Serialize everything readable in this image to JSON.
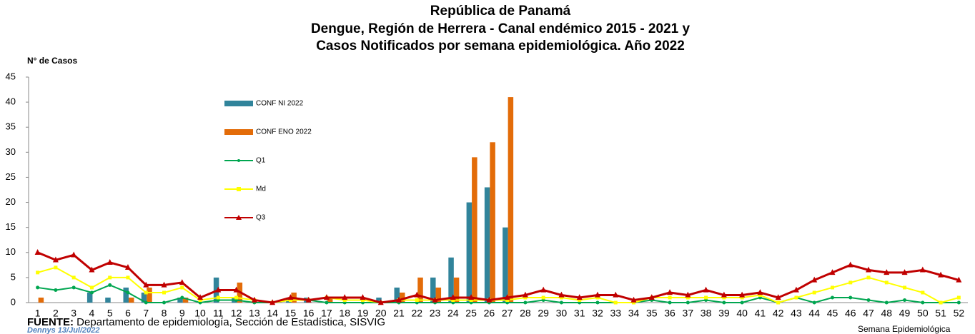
{
  "chart_data": {
    "type": "bar_line",
    "title": [
      "República de Panamá",
      "Dengue, Región de Herrera - Canal endémico 2015 - 2021 y",
      "Casos Notificados por semana epidemiológica. Año 2022"
    ],
    "y_label": "N° de Casos",
    "x_label": "Semana Epidemiológica",
    "source_label": "FUENTE:",
    "source": "Departamento de epidemiología, Sección de Estadística, SISVIG",
    "author": "Dennys 13/Jul/2022",
    "categories": [
      "1",
      "2",
      "3",
      "4",
      "5",
      "6",
      "7",
      "8",
      "9",
      "10",
      "11",
      "12",
      "13",
      "14",
      "15",
      "16",
      "17",
      "18",
      "19",
      "20",
      "21",
      "22",
      "23",
      "24",
      "25",
      "26",
      "27",
      "28",
      "29",
      "30",
      "31",
      "32",
      "33",
      "34",
      "35",
      "36",
      "37",
      "38",
      "39",
      "40",
      "41",
      "42",
      "43",
      "44",
      "45",
      "46",
      "47",
      "48",
      "49",
      "50",
      "51",
      "52"
    ],
    "ylim": [
      0,
      45
    ],
    "yticks": [
      0,
      5,
      10,
      15,
      20,
      25,
      30,
      35,
      40,
      45
    ],
    "series": [
      {
        "name": "CONF NI 2022",
        "kind": "bar",
        "color": "#31849b",
        "values": [
          0,
          0,
          0,
          2,
          1,
          3,
          2,
          0,
          1,
          0,
          5,
          1,
          0,
          0,
          1,
          1,
          0,
          0,
          0,
          1,
          3,
          0,
          5,
          9,
          20,
          23,
          15,
          0,
          0,
          0,
          0,
          0,
          0,
          0,
          0,
          0,
          0,
          0,
          0,
          0,
          0,
          0,
          0,
          0,
          0,
          0,
          0,
          0,
          0,
          0,
          0,
          0
        ]
      },
      {
        "name": "CONF ENO 2022",
        "kind": "bar",
        "color": "#e36c09",
        "values": [
          1,
          0,
          0,
          0,
          0,
          1,
          3,
          0,
          1,
          0,
          0,
          4,
          0,
          0,
          2,
          0,
          1,
          0,
          0,
          0,
          2,
          5,
          3,
          5,
          29,
          32,
          41,
          0,
          0,
          0,
          0,
          0,
          0,
          0,
          0,
          0,
          0,
          0,
          0,
          0,
          0,
          0,
          0,
          0,
          0,
          0,
          0,
          0,
          0,
          0,
          0,
          0
        ]
      },
      {
        "name": "Q1",
        "kind": "line",
        "marker": "circle",
        "color": "#00a650",
        "values": [
          3,
          2.5,
          3,
          2,
          3.5,
          2,
          0,
          0,
          1,
          0,
          0.5,
          0.5,
          0,
          0,
          0.5,
          0.5,
          0,
          0,
          0,
          0,
          0,
          0,
          0,
          0,
          0,
          0,
          0,
          0,
          0.5,
          0,
          0,
          0,
          0,
          0,
          0.5,
          0,
          0,
          0.5,
          0,
          0,
          1,
          0,
          1,
          0,
          1,
          1,
          0.5,
          0,
          0.5,
          0,
          0,
          0
        ]
      },
      {
        "name": "Md",
        "kind": "line",
        "marker": "square",
        "color": "#ffff00",
        "values": [
          6,
          7,
          5,
          3,
          5,
          5,
          2,
          2,
          3,
          0.5,
          1,
          1,
          0.5,
          0,
          0.5,
          0.5,
          1,
          0.5,
          0.5,
          0,
          0.5,
          0.5,
          0.5,
          0.5,
          0.5,
          0.5,
          0.5,
          1,
          1,
          1,
          0.5,
          1,
          0,
          0,
          1,
          1,
          1,
          1,
          1,
          1,
          1.5,
          0,
          1,
          2,
          3,
          4,
          5,
          4,
          3,
          2,
          0,
          1
        ]
      },
      {
        "name": "Q3",
        "kind": "line",
        "marker": "triangle",
        "color": "#c00000",
        "values": [
          10,
          8.5,
          9.5,
          6.5,
          8,
          7,
          3.5,
          3.5,
          4,
          1,
          2.5,
          2.5,
          0.5,
          0,
          1,
          0.5,
          1,
          1,
          1,
          0,
          0.5,
          1.5,
          0.5,
          1,
          1,
          0.5,
          1,
          1.5,
          2.5,
          1.5,
          1,
          1.5,
          1.5,
          0.5,
          1,
          2,
          1.5,
          2.5,
          1.5,
          1.5,
          2,
          1,
          2.5,
          4.5,
          6,
          7.5,
          6.5,
          6,
          6,
          6.5,
          5.5,
          4.5
        ]
      }
    ]
  }
}
